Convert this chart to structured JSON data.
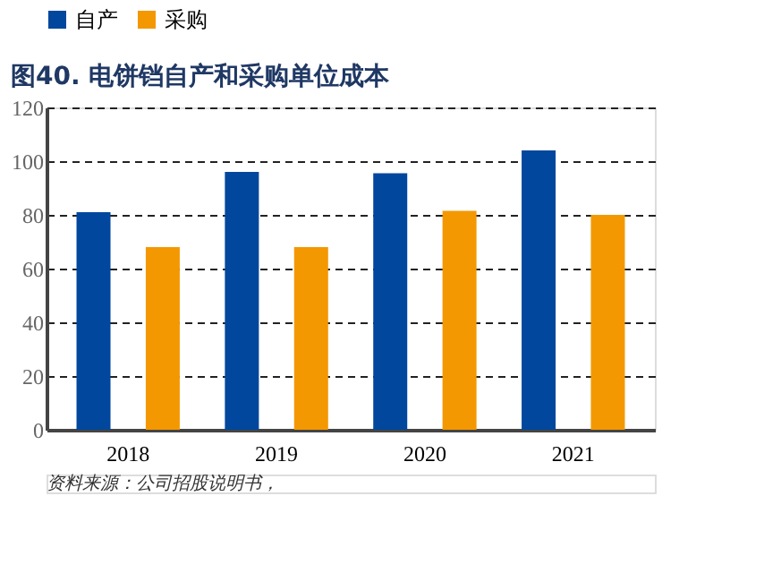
{
  "chart_data": {
    "type": "bar",
    "title": "图40. 电饼铛自产和采购单位成本",
    "categories": [
      "2018",
      "2019",
      "2020",
      "2021"
    ],
    "series": [
      {
        "name": "自产",
        "color": "#00479d",
        "values": [
          81,
          96,
          95.5,
          104
        ]
      },
      {
        "name": "采购",
        "color": "#f39800",
        "values": [
          68,
          68,
          81.5,
          80
        ]
      }
    ],
    "ylim": [
      0,
      120
    ],
    "yticks": [
      0,
      20,
      40,
      60,
      80,
      100,
      120
    ],
    "grid": "y",
    "legend": "top",
    "annotations": [
      "资料来源：公司招股说明书，"
    ]
  }
}
